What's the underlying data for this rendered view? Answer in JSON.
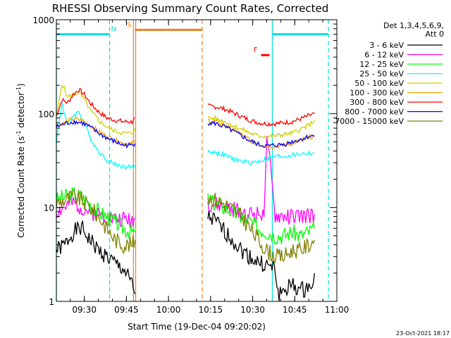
{
  "chart_data": {
    "type": "line",
    "title": "RHESSI Observing Summary Count Rates, Corrected",
    "xlabel": "Start Time (19-Dec-04 09:20:02)",
    "ylabel": "Corrected Count Rate (s",
    "ylabel_sup1": "-1",
    "ylabel_mid": " detector",
    "ylabel_sup2": "-1",
    "ylabel_end": ")",
    "ylim": [
      1,
      1000
    ],
    "yscale": "log",
    "xlim": [
      "09:20:02",
      "11:00"
    ],
    "x_ticks": [
      "09:30",
      "09:45",
      "10:00",
      "10:15",
      "10:30",
      "10:45",
      "11:00"
    ],
    "y_ticks": [
      "1",
      "10",
      "100",
      "1000"
    ],
    "grid": false,
    "legend_position": "right",
    "legend_header": [
      "Det 1,3,4,5,6,9,",
      "Att 0"
    ],
    "timestamp": "23-Oct-2021 18:17",
    "flags": [
      {
        "label": "N",
        "color": "#00e0e0",
        "spans": [
          [
            "09:20:02",
            "09:39"
          ],
          [
            "10:37",
            "10:57"
          ]
        ],
        "level": 700
      },
      {
        "label": "S",
        "color": "#f08020",
        "spans": [
          [
            "09:48",
            "10:12"
          ]
        ],
        "level": 780
      },
      {
        "label": "F",
        "color": "#ff0000",
        "spans": [
          [
            "10:33",
            "10:36"
          ]
        ],
        "level": 420
      }
    ],
    "markers": [
      {
        "time": "09:20:02",
        "color": "#00e0e0",
        "style": "solid"
      },
      {
        "time": "09:39",
        "color": "#00e0e0",
        "style": "dashed"
      },
      {
        "time": "09:47.5",
        "color": "#f08020",
        "style": "solid"
      },
      {
        "time": "09:48.3",
        "color": "#f08020",
        "style": "solid"
      },
      {
        "time": "10:12",
        "color": "#f08020",
        "style": "dashed"
      },
      {
        "time": "10:37",
        "color": "#00e0e0",
        "style": "solid"
      },
      {
        "time": "10:57",
        "color": "#00e0e0",
        "style": "dashed"
      }
    ],
    "gap": [
      "09:48",
      "10:14"
    ],
    "series": [
      {
        "name": "3 - 6 keV",
        "color": "#000000",
        "seg1": [
          [
            0,
            3.5
          ],
          [
            3,
            4
          ],
          [
            6,
            5.5
          ],
          [
            9,
            6
          ],
          [
            12,
            4.5
          ],
          [
            15,
            3.5
          ],
          [
            18,
            3
          ],
          [
            21,
            2.5
          ],
          [
            24,
            2.2
          ],
          [
            27,
            1.5
          ],
          [
            28,
            1.2
          ]
        ],
        "seg2": [
          [
            54,
            8
          ],
          [
            57,
            7
          ],
          [
            60,
            5.5
          ],
          [
            63,
            4.5
          ],
          [
            66,
            3.5
          ],
          [
            69,
            3
          ],
          [
            72,
            2.6
          ],
          [
            75,
            2.4
          ],
          [
            78,
            2.2
          ],
          [
            79,
            1.2
          ],
          [
            81,
            1.3
          ],
          [
            84,
            1.5
          ],
          [
            87,
            1.3
          ],
          [
            90,
            1.4
          ],
          [
            92,
            2
          ]
        ]
      },
      {
        "name": "6 - 12 keV",
        "color": "#ff00ff",
        "seg1": [
          [
            0,
            9
          ],
          [
            3,
            10
          ],
          [
            6,
            11
          ],
          [
            9,
            10
          ],
          [
            12,
            9
          ],
          [
            15,
            8.5
          ],
          [
            18,
            8
          ],
          [
            21,
            7.5
          ],
          [
            24,
            7.5
          ],
          [
            27,
            7.5
          ],
          [
            28,
            7.5
          ]
        ],
        "seg2": [
          [
            54,
            11
          ],
          [
            57,
            10.5
          ],
          [
            60,
            10
          ],
          [
            63,
            9.5
          ],
          [
            66,
            9
          ],
          [
            69,
            8.5
          ],
          [
            72,
            8.5
          ],
          [
            74,
            9
          ],
          [
            75,
            55
          ],
          [
            76,
            35
          ],
          [
            78,
            8
          ],
          [
            81,
            8
          ],
          [
            84,
            8
          ],
          [
            87,
            8
          ],
          [
            90,
            8
          ],
          [
            92,
            8.5
          ]
        ]
      },
      {
        "name": "12 - 25 keV",
        "color": "#00ff00",
        "seg1": [
          [
            0,
            12
          ],
          [
            3,
            13
          ],
          [
            6,
            14
          ],
          [
            9,
            13
          ],
          [
            12,
            11
          ],
          [
            15,
            9
          ],
          [
            18,
            8
          ],
          [
            21,
            7
          ],
          [
            24,
            6
          ],
          [
            27,
            5.5
          ],
          [
            28,
            5.5
          ]
        ],
        "seg2": [
          [
            54,
            12
          ],
          [
            57,
            11
          ],
          [
            60,
            10
          ],
          [
            63,
            9
          ],
          [
            66,
            8
          ],
          [
            69,
            7
          ],
          [
            72,
            6
          ],
          [
            75,
            5.5
          ],
          [
            78,
            5
          ],
          [
            81,
            5
          ],
          [
            84,
            5.5
          ],
          [
            87,
            5
          ],
          [
            90,
            5.5
          ],
          [
            92,
            6
          ]
        ]
      },
      {
        "name": "25 - 50 keV",
        "color": "#00ffff",
        "seg1": [
          [
            0,
            50
          ],
          [
            2,
            130
          ],
          [
            4,
            75
          ],
          [
            6,
            95
          ],
          [
            8,
            105
          ],
          [
            10,
            80
          ],
          [
            12,
            55
          ],
          [
            15,
            40
          ],
          [
            18,
            32
          ],
          [
            21,
            29
          ],
          [
            24,
            27
          ],
          [
            27,
            27
          ],
          [
            28,
            28
          ]
        ],
        "seg2": [
          [
            54,
            40
          ],
          [
            57,
            38
          ],
          [
            60,
            36
          ],
          [
            63,
            33
          ],
          [
            66,
            31
          ],
          [
            69,
            30
          ],
          [
            72,
            31
          ],
          [
            75,
            33
          ],
          [
            78,
            35
          ],
          [
            81,
            35
          ],
          [
            84,
            36
          ],
          [
            87,
            37
          ],
          [
            90,
            38
          ],
          [
            92,
            38
          ]
        ]
      },
      {
        "name": "50 - 100 keV",
        "color": "#d0d000",
        "seg1": [
          [
            0,
            90
          ],
          [
            2,
            210
          ],
          [
            4,
            150
          ],
          [
            6,
            160
          ],
          [
            8,
            170
          ],
          [
            10,
            140
          ],
          [
            12,
            110
          ],
          [
            15,
            85
          ],
          [
            18,
            72
          ],
          [
            21,
            65
          ],
          [
            24,
            62
          ],
          [
            27,
            62
          ],
          [
            28,
            70
          ]
        ],
        "seg2": [
          [
            54,
            90
          ],
          [
            57,
            88
          ],
          [
            60,
            82
          ],
          [
            63,
            75
          ],
          [
            66,
            68
          ],
          [
            69,
            62
          ],
          [
            72,
            58
          ],
          [
            75,
            57
          ],
          [
            78,
            58
          ],
          [
            81,
            60
          ],
          [
            84,
            62
          ],
          [
            87,
            68
          ],
          [
            90,
            75
          ],
          [
            92,
            85
          ]
        ]
      },
      {
        "name": "100 - 300 keV",
        "color": "#ffa500",
        "seg1": [
          [
            0,
            75
          ],
          [
            3,
            80
          ],
          [
            6,
            88
          ],
          [
            9,
            85
          ],
          [
            12,
            75
          ],
          [
            15,
            65
          ],
          [
            18,
            57
          ],
          [
            21,
            52
          ],
          [
            24,
            48
          ],
          [
            27,
            48
          ],
          [
            28,
            50
          ]
        ],
        "seg2": [
          [
            54,
            85
          ],
          [
            57,
            82
          ],
          [
            60,
            75
          ],
          [
            63,
            68
          ],
          [
            66,
            60
          ],
          [
            69,
            52
          ],
          [
            72,
            47
          ],
          [
            75,
            45
          ],
          [
            78,
            45
          ],
          [
            81,
            46
          ],
          [
            84,
            48
          ],
          [
            87,
            52
          ],
          [
            90,
            56
          ],
          [
            92,
            58
          ]
        ]
      },
      {
        "name": "300 - 800 keV",
        "color": "#ff0000",
        "seg1": [
          [
            0,
            95
          ],
          [
            2,
            140
          ],
          [
            4,
            130
          ],
          [
            6,
            160
          ],
          [
            8,
            180
          ],
          [
            10,
            160
          ],
          [
            12,
            130
          ],
          [
            15,
            105
          ],
          [
            18,
            90
          ],
          [
            21,
            85
          ],
          [
            24,
            82
          ],
          [
            27,
            82
          ],
          [
            28,
            90
          ]
        ],
        "seg2": [
          [
            54,
            120
          ],
          [
            57,
            118
          ],
          [
            60,
            112
          ],
          [
            63,
            102
          ],
          [
            66,
            93
          ],
          [
            69,
            85
          ],
          [
            72,
            80
          ],
          [
            75,
            78
          ],
          [
            78,
            78
          ],
          [
            81,
            80
          ],
          [
            84,
            82
          ],
          [
            87,
            88
          ],
          [
            90,
            95
          ],
          [
            92,
            100
          ]
        ]
      },
      {
        "name": "800 - 7000 keV",
        "color": "#0000ff",
        "seg1": [
          [
            0,
            72
          ],
          [
            3,
            78
          ],
          [
            6,
            82
          ],
          [
            9,
            80
          ],
          [
            12,
            72
          ],
          [
            15,
            62
          ],
          [
            18,
            55
          ],
          [
            21,
            50
          ],
          [
            24,
            46
          ],
          [
            27,
            46
          ],
          [
            28,
            48
          ]
        ],
        "seg2": [
          [
            54,
            80
          ],
          [
            57,
            78
          ],
          [
            60,
            72
          ],
          [
            63,
            65
          ],
          [
            66,
            58
          ],
          [
            69,
            51
          ],
          [
            72,
            47
          ],
          [
            75,
            45
          ],
          [
            78,
            46
          ],
          [
            81,
            47
          ],
          [
            84,
            50
          ],
          [
            87,
            53
          ],
          [
            90,
            57
          ],
          [
            92,
            58
          ]
        ]
      },
      {
        "name": "7000 - 15000 keV",
        "color": "#808000",
        "seg1": [
          [
            0,
            11
          ],
          [
            3,
            12
          ],
          [
            6,
            13
          ],
          [
            9,
            12
          ],
          [
            12,
            10
          ],
          [
            15,
            8
          ],
          [
            18,
            6
          ],
          [
            21,
            4.5
          ],
          [
            24,
            4
          ],
          [
            27,
            4
          ],
          [
            28,
            4.5
          ]
        ],
        "seg2": [
          [
            54,
            13
          ],
          [
            57,
            12
          ],
          [
            60,
            11
          ],
          [
            63,
            9.5
          ],
          [
            66,
            8
          ],
          [
            69,
            6
          ],
          [
            72,
            4.5
          ],
          [
            75,
            3.5
          ],
          [
            78,
            3
          ],
          [
            81,
            3
          ],
          [
            84,
            3.5
          ],
          [
            87,
            3.5
          ],
          [
            90,
            4
          ],
          [
            92,
            4.5
          ]
        ]
      }
    ]
  }
}
